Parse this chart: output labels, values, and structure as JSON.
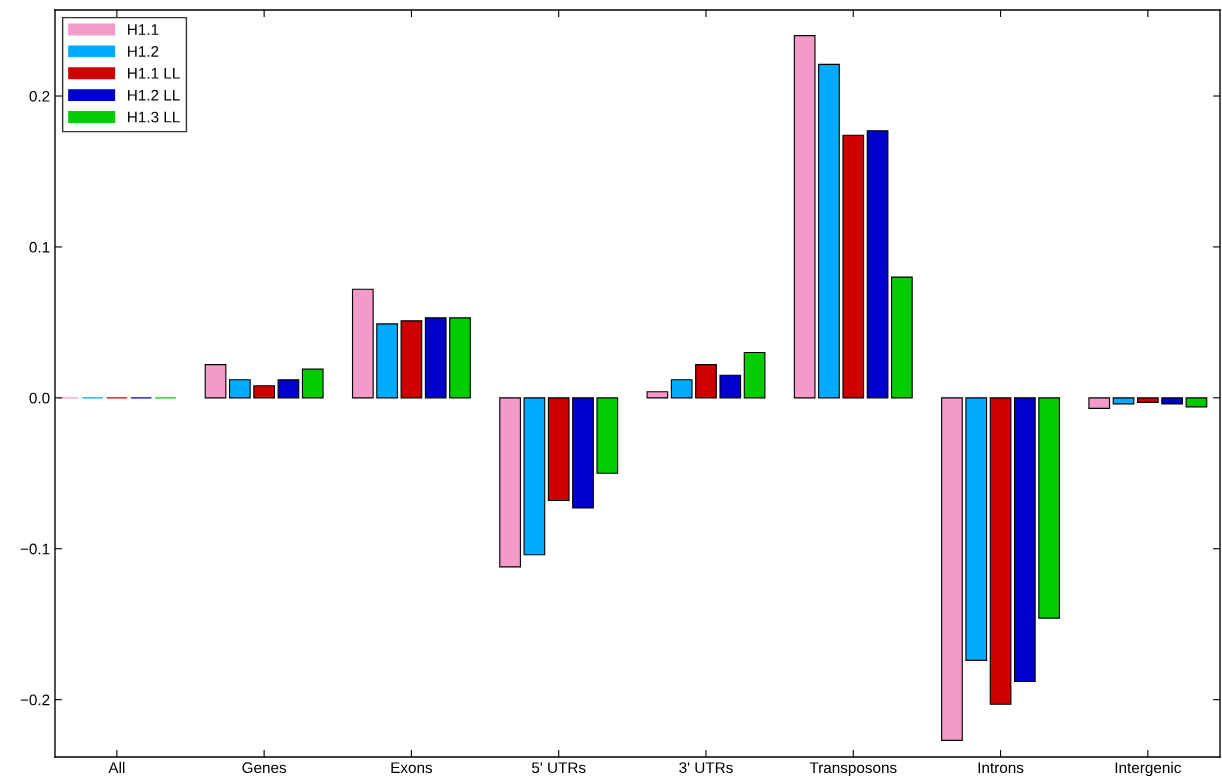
{
  "chart_data": {
    "type": "bar",
    "categories": [
      "All",
      "Genes",
      "Exons",
      "5' UTRs",
      "3' UTRs",
      "Transposons",
      "Introns",
      "Intergenic"
    ],
    "series": [
      {
        "name": "H1.1",
        "color": "#f49ac9",
        "values": [
          0,
          0.022,
          0.072,
          -0.112,
          0.004,
          0.24,
          -0.227,
          -0.007
        ]
      },
      {
        "name": "H1.2",
        "color": "#00aaff",
        "values": [
          0,
          0.012,
          0.049,
          -0.104,
          0.012,
          0.221,
          -0.174,
          -0.004
        ]
      },
      {
        "name": "H1.1 LL",
        "color": "#cc0000",
        "values": [
          0,
          0.008,
          0.051,
          -0.068,
          0.022,
          0.174,
          -0.203,
          -0.003
        ]
      },
      {
        "name": "H1.2 LL",
        "color": "#0000cc",
        "values": [
          0,
          0.012,
          0.053,
          -0.073,
          0.015,
          0.177,
          -0.188,
          -0.004
        ]
      },
      {
        "name": "H1.3 LL",
        "color": "#00cc00",
        "values": [
          0,
          0.019,
          0.053,
          -0.05,
          0.03,
          0.08,
          -0.146,
          -0.006
        ]
      }
    ],
    "ylim": [
      -0.238,
      0.257
    ],
    "yticks": [
      {
        "value": -0.2,
        "label": "−0.2"
      },
      {
        "value": -0.1,
        "label": "−0.1"
      },
      {
        "value": 0.0,
        "label": "0.0"
      },
      0.1,
      0.2
    ],
    "grid": false,
    "legend": "top left"
  }
}
